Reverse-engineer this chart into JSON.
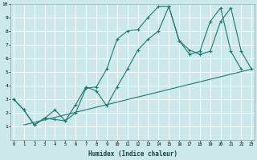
{
  "xlabel": "Humidex (Indice chaleur)",
  "bg_color": "#cce8ea",
  "grid_color": "#ffffff",
  "line_color": "#1a7a6e",
  "xlim": [
    -0.5,
    23
  ],
  "ylim": [
    0,
    10
  ],
  "yticks": [
    1,
    2,
    3,
    4,
    5,
    6,
    7,
    8,
    9,
    10
  ],
  "line1_x": [
    0,
    1,
    2,
    3,
    4,
    5,
    6,
    7,
    8,
    9,
    10,
    11,
    12,
    13,
    14,
    15,
    16,
    17,
    18,
    19,
    20,
    21,
    22,
    23
  ],
  "line1_y": [
    3.0,
    2.2,
    1.1,
    1.6,
    1.5,
    1.4,
    2.0,
    3.8,
    3.9,
    5.2,
    7.4,
    8.0,
    8.1,
    9.0,
    9.8,
    9.8,
    7.3,
    6.3,
    6.5,
    8.7,
    9.7,
    6.5,
    5.2,
    null
  ],
  "line2_x": [
    0,
    1,
    2,
    3,
    4,
    5,
    6,
    7,
    8,
    9,
    10,
    11,
    12,
    13,
    14,
    15,
    16,
    17,
    18,
    19,
    20,
    21,
    22,
    23
  ],
  "line2_y": [
    3.0,
    2.2,
    1.1,
    1.6,
    2.2,
    1.4,
    2.6,
    3.9,
    3.6,
    2.5,
    3.9,
    5.2,
    6.6,
    7.4,
    8.0,
    9.8,
    7.3,
    6.6,
    6.3,
    6.5,
    8.7,
    9.7,
    6.5,
    5.2
  ],
  "line3_x": [
    1,
    23
  ],
  "line3_y": [
    1.1,
    5.2
  ]
}
